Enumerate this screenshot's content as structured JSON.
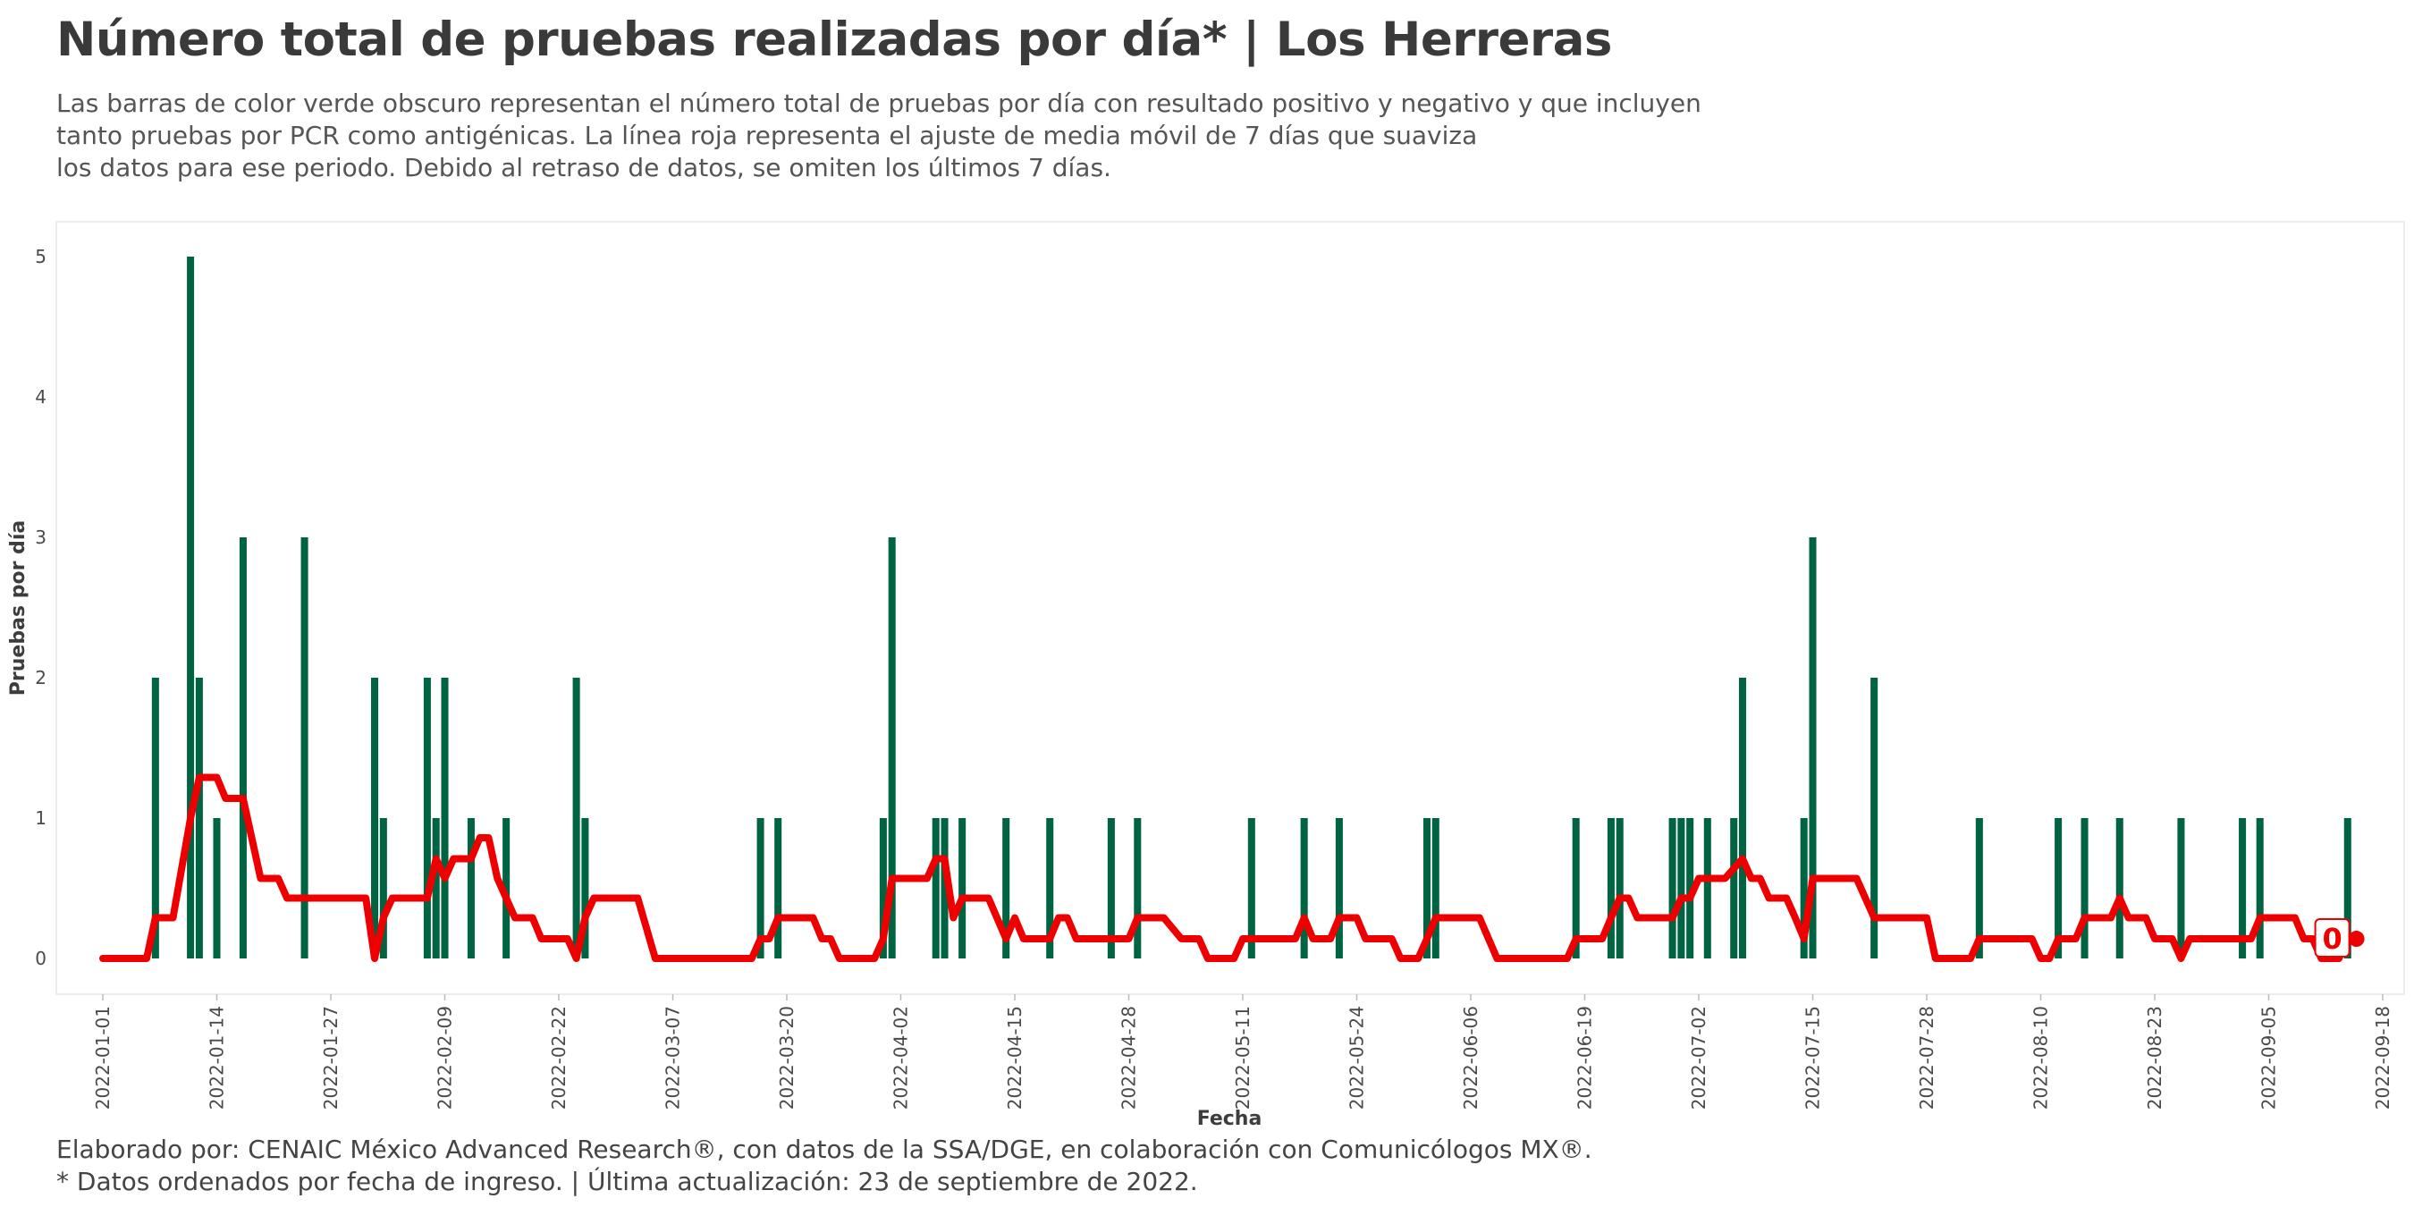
{
  "title": "Número total de pruebas realizadas por día* | Los Herreras",
  "subtitle": [
    "Las barras de color verde obscuro representan el número total de pruebas por día con resultado positivo y negativo y que incluyen",
    "tanto pruebas por PCR como antigénicas. La línea roja representa el ajuste de media móvil de 7 días que suaviza",
    "los datos para ese periodo. Debido al retraso de datos, se omiten los últimos 7 días."
  ],
  "caption": [
    "Elaborado por: CENAIC México Advanced Research®, con datos de la SSA/DGE, en colaboración con Comunicólogos MX®.",
    "* Datos ordenados por fecha de ingreso. | Última actualización: 23 de septiembre de 2022."
  ],
  "colors": {
    "bars": "#006341",
    "line": "#ee0000",
    "panel_border": "#e6e6e6"
  },
  "chart_data": {
    "type": "bar",
    "xlabel": "Fecha",
    "ylabel": "Pruebas por día",
    "xlim": [
      "2022-01-01",
      "2022-09-18"
    ],
    "ylim": [
      0,
      5
    ],
    "x_ticks": [
      "2022-01-01",
      "2022-01-14",
      "2022-01-27",
      "2022-02-09",
      "2022-02-22",
      "2022-03-07",
      "2022-03-20",
      "2022-04-02",
      "2022-04-15",
      "2022-04-28",
      "2022-05-11",
      "2022-05-24",
      "2022-06-06",
      "2022-06-19",
      "2022-07-02",
      "2022-07-15",
      "2022-07-28",
      "2022-08-10",
      "2022-08-23",
      "2022-09-05",
      "2022-09-18"
    ],
    "y_ticks": [
      0,
      1,
      2,
      3,
      4,
      5
    ],
    "grid": false,
    "end_label": "0",
    "series": [
      {
        "type": "bar",
        "points": [
          [
            "2022-01-07",
            2
          ],
          [
            "2022-01-11",
            5
          ],
          [
            "2022-01-12",
            2
          ],
          [
            "2022-01-14",
            1
          ],
          [
            "2022-01-17",
            3
          ],
          [
            "2022-01-24",
            3
          ],
          [
            "2022-02-01",
            2
          ],
          [
            "2022-02-02",
            1
          ],
          [
            "2022-02-07",
            2
          ],
          [
            "2022-02-08",
            1
          ],
          [
            "2022-02-09",
            2
          ],
          [
            "2022-02-12",
            1
          ],
          [
            "2022-02-16",
            1
          ],
          [
            "2022-02-24",
            2
          ],
          [
            "2022-02-25",
            1
          ],
          [
            "2022-03-17",
            1
          ],
          [
            "2022-03-19",
            1
          ],
          [
            "2022-03-31",
            1
          ],
          [
            "2022-04-01",
            3
          ],
          [
            "2022-04-06",
            1
          ],
          [
            "2022-04-07",
            1
          ],
          [
            "2022-04-09",
            1
          ],
          [
            "2022-04-14",
            1
          ],
          [
            "2022-04-19",
            1
          ],
          [
            "2022-04-26",
            1
          ],
          [
            "2022-04-29",
            1
          ],
          [
            "2022-05-12",
            1
          ],
          [
            "2022-05-18",
            1
          ],
          [
            "2022-05-22",
            1
          ],
          [
            "2022-06-01",
            1
          ],
          [
            "2022-06-02",
            1
          ],
          [
            "2022-06-18",
            1
          ],
          [
            "2022-06-22",
            1
          ],
          [
            "2022-06-23",
            1
          ],
          [
            "2022-06-29",
            1
          ],
          [
            "2022-06-30",
            1
          ],
          [
            "2022-07-01",
            1
          ],
          [
            "2022-07-03",
            1
          ],
          [
            "2022-07-06",
            1
          ],
          [
            "2022-07-07",
            2
          ],
          [
            "2022-07-14",
            1
          ],
          [
            "2022-07-15",
            3
          ],
          [
            "2022-07-22",
            2
          ],
          [
            "2022-08-03",
            1
          ],
          [
            "2022-08-12",
            1
          ],
          [
            "2022-08-15",
            1
          ],
          [
            "2022-08-19",
            1
          ],
          [
            "2022-08-26",
            1
          ],
          [
            "2022-09-02",
            1
          ],
          [
            "2022-09-04",
            1
          ],
          [
            "2022-09-14",
            1
          ]
        ]
      },
      {
        "type": "line",
        "points": [
          [
            "2022-01-01",
            0
          ],
          [
            "2022-01-06",
            0
          ],
          [
            "2022-01-07",
            0.29
          ],
          [
            "2022-01-09",
            0.29
          ],
          [
            "2022-01-11",
            1.0
          ],
          [
            "2022-01-12",
            1.29
          ],
          [
            "2022-01-14",
            1.29
          ],
          [
            "2022-01-15",
            1.14
          ],
          [
            "2022-01-17",
            1.14
          ],
          [
            "2022-01-19",
            0.57
          ],
          [
            "2022-01-21",
            0.57
          ],
          [
            "2022-01-22",
            0.43
          ],
          [
            "2022-01-31",
            0.43
          ],
          [
            "2022-02-01",
            0.0
          ],
          [
            "2022-02-02",
            0.29
          ],
          [
            "2022-02-03",
            0.43
          ],
          [
            "2022-02-07",
            0.43
          ],
          [
            "2022-02-08",
            0.71
          ],
          [
            "2022-02-09",
            0.57
          ],
          [
            "2022-02-10",
            0.71
          ],
          [
            "2022-02-12",
            0.71
          ],
          [
            "2022-02-13",
            0.86
          ],
          [
            "2022-02-14",
            0.86
          ],
          [
            "2022-02-15",
            0.57
          ],
          [
            "2022-02-17",
            0.29
          ],
          [
            "2022-02-19",
            0.29
          ],
          [
            "2022-02-20",
            0.14
          ],
          [
            "2022-02-23",
            0.14
          ],
          [
            "2022-02-24",
            0.0
          ],
          [
            "2022-02-25",
            0.29
          ],
          [
            "2022-02-26",
            0.43
          ],
          [
            "2022-03-03",
            0.43
          ],
          [
            "2022-03-05",
            0.0
          ],
          [
            "2022-03-16",
            0.0
          ],
          [
            "2022-03-17",
            0.14
          ],
          [
            "2022-03-18",
            0.14
          ],
          [
            "2022-03-19",
            0.29
          ],
          [
            "2022-03-23",
            0.29
          ],
          [
            "2022-03-24",
            0.14
          ],
          [
            "2022-03-25",
            0.14
          ],
          [
            "2022-03-26",
            0.0
          ],
          [
            "2022-03-30",
            0.0
          ],
          [
            "2022-03-31",
            0.14
          ],
          [
            "2022-04-01",
            0.57
          ],
          [
            "2022-04-05",
            0.57
          ],
          [
            "2022-04-06",
            0.71
          ],
          [
            "2022-04-07",
            0.71
          ],
          [
            "2022-04-08",
            0.29
          ],
          [
            "2022-04-09",
            0.43
          ],
          [
            "2022-04-12",
            0.43
          ],
          [
            "2022-04-14",
            0.14
          ],
          [
            "2022-04-15",
            0.29
          ],
          [
            "2022-04-16",
            0.14
          ],
          [
            "2022-04-19",
            0.14
          ],
          [
            "2022-04-20",
            0.29
          ],
          [
            "2022-04-21",
            0.29
          ],
          [
            "2022-04-22",
            0.14
          ],
          [
            "2022-04-28",
            0.14
          ],
          [
            "2022-04-29",
            0.29
          ],
          [
            "2022-05-02",
            0.29
          ],
          [
            "2022-05-04",
            0.14
          ],
          [
            "2022-05-06",
            0.14
          ],
          [
            "2022-05-07",
            0.0
          ],
          [
            "2022-05-10",
            0.0
          ],
          [
            "2022-05-11",
            0.14
          ],
          [
            "2022-05-17",
            0.14
          ],
          [
            "2022-05-18",
            0.29
          ],
          [
            "2022-05-19",
            0.14
          ],
          [
            "2022-05-21",
            0.14
          ],
          [
            "2022-05-22",
            0.29
          ],
          [
            "2022-05-24",
            0.29
          ],
          [
            "2022-05-25",
            0.14
          ],
          [
            "2022-05-28",
            0.14
          ],
          [
            "2022-05-29",
            0.0
          ],
          [
            "2022-05-31",
            0.0
          ],
          [
            "2022-06-01",
            0.14
          ],
          [
            "2022-06-02",
            0.29
          ],
          [
            "2022-06-07",
            0.29
          ],
          [
            "2022-06-09",
            0.0
          ],
          [
            "2022-06-17",
            0.0
          ],
          [
            "2022-06-18",
            0.14
          ],
          [
            "2022-06-21",
            0.14
          ],
          [
            "2022-06-22",
            0.29
          ],
          [
            "2022-06-23",
            0.43
          ],
          [
            "2022-06-24",
            0.43
          ],
          [
            "2022-06-25",
            0.29
          ],
          [
            "2022-06-29",
            0.29
          ],
          [
            "2022-06-30",
            0.43
          ],
          [
            "2022-07-01",
            0.43
          ],
          [
            "2022-07-02",
            0.57
          ],
          [
            "2022-07-05",
            0.57
          ],
          [
            "2022-07-07",
            0.71
          ],
          [
            "2022-07-08",
            0.57
          ],
          [
            "2022-07-09",
            0.57
          ],
          [
            "2022-07-10",
            0.43
          ],
          [
            "2022-07-12",
            0.43
          ],
          [
            "2022-07-13",
            0.29
          ],
          [
            "2022-07-14",
            0.14
          ],
          [
            "2022-07-15",
            0.57
          ],
          [
            "2022-07-20",
            0.57
          ],
          [
            "2022-07-22",
            0.29
          ],
          [
            "2022-07-28",
            0.29
          ],
          [
            "2022-07-29",
            0.0
          ],
          [
            "2022-08-02",
            0.0
          ],
          [
            "2022-08-03",
            0.14
          ],
          [
            "2022-08-09",
            0.14
          ],
          [
            "2022-08-10",
            0.0
          ],
          [
            "2022-08-11",
            0.0
          ],
          [
            "2022-08-12",
            0.14
          ],
          [
            "2022-08-14",
            0.14
          ],
          [
            "2022-08-15",
            0.29
          ],
          [
            "2022-08-18",
            0.29
          ],
          [
            "2022-08-19",
            0.43
          ],
          [
            "2022-08-20",
            0.29
          ],
          [
            "2022-08-22",
            0.29
          ],
          [
            "2022-08-23",
            0.14
          ],
          [
            "2022-08-25",
            0.14
          ],
          [
            "2022-08-26",
            0.0
          ],
          [
            "2022-08-27",
            0.14
          ],
          [
            "2022-09-03",
            0.14
          ],
          [
            "2022-09-04",
            0.29
          ],
          [
            "2022-09-08",
            0.29
          ],
          [
            "2022-09-09",
            0.14
          ],
          [
            "2022-09-10",
            0.14
          ],
          [
            "2022-09-11",
            0.0
          ],
          [
            "2022-09-13",
            0.0
          ],
          [
            "2022-09-14",
            0.14
          ],
          [
            "2022-09-15",
            0.14
          ]
        ]
      }
    ]
  }
}
